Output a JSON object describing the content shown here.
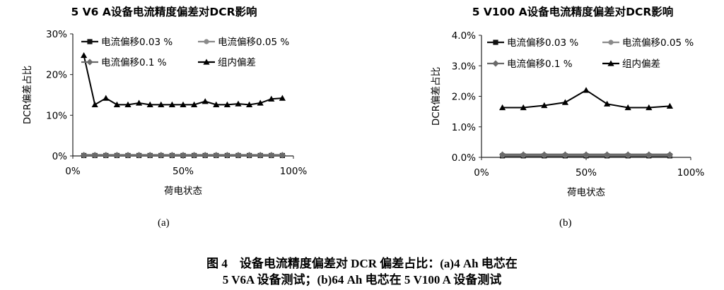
{
  "chart_data": [
    {
      "type": "line",
      "title": "5 V6 A设备电流精度偏差对DCR影响",
      "xlabel": "荷电状态",
      "ylabel": "DCR偏差占比",
      "xlim": [
        0,
        100
      ],
      "ylim": [
        0,
        30
      ],
      "xticks": [
        0,
        50,
        100
      ],
      "xtick_labels": [
        "0%",
        "50%",
        "100%"
      ],
      "yticks": [
        0,
        10,
        20,
        30
      ],
      "ytick_labels": [
        "0%",
        "10%",
        "20%",
        "30%"
      ],
      "legend": "top-inside",
      "grid": false,
      "series": [
        {
          "name": "电流偏移0.03 %",
          "color": "#111111",
          "marker": "square",
          "x": [
            5,
            10,
            15,
            20,
            25,
            30,
            35,
            40,
            45,
            50,
            55,
            60,
            65,
            70,
            75,
            80,
            85,
            90,
            95
          ],
          "y": [
            0.1,
            0.1,
            0.1,
            0.1,
            0.1,
            0.1,
            0.1,
            0.1,
            0.1,
            0.1,
            0.1,
            0.1,
            0.1,
            0.1,
            0.1,
            0.1,
            0.1,
            0.1,
            0.1
          ]
        },
        {
          "name": "电流偏移0.05 %",
          "color": "#8a8a8a",
          "marker": "circle",
          "x": [
            5,
            10,
            15,
            20,
            25,
            30,
            35,
            40,
            45,
            50,
            55,
            60,
            65,
            70,
            75,
            80,
            85,
            90,
            95
          ],
          "y": [
            0.15,
            0.15,
            0.15,
            0.15,
            0.15,
            0.15,
            0.15,
            0.15,
            0.15,
            0.15,
            0.15,
            0.15,
            0.15,
            0.15,
            0.15,
            0.15,
            0.15,
            0.15,
            0.15
          ]
        },
        {
          "name": "电流偏移0.1 %",
          "color": "#6a6a6a",
          "marker": "diamond",
          "x": [
            5,
            10,
            15,
            20,
            25,
            30,
            35,
            40,
            45,
            50,
            55,
            60,
            65,
            70,
            75,
            80,
            85,
            90,
            95
          ],
          "y": [
            0.2,
            0.2,
            0.2,
            0.2,
            0.2,
            0.2,
            0.2,
            0.2,
            0.2,
            0.2,
            0.2,
            0.2,
            0.2,
            0.2,
            0.2,
            0.2,
            0.2,
            0.2,
            0.2
          ]
        },
        {
          "name": "组内偏差",
          "color": "#000000",
          "marker": "triangle",
          "x": [
            5,
            10,
            15,
            20,
            25,
            30,
            35,
            40,
            45,
            50,
            55,
            60,
            65,
            70,
            75,
            80,
            85,
            90,
            95
          ],
          "y": [
            24.7,
            12.6,
            14.2,
            12.6,
            12.6,
            13.0,
            12.6,
            12.6,
            12.6,
            12.6,
            12.6,
            13.4,
            12.6,
            12.6,
            12.8,
            12.6,
            13.0,
            14.0,
            14.2
          ]
        }
      ]
    },
    {
      "type": "line",
      "title": "5 V100 A设备电流精度偏差对DCR影响",
      "xlabel": "荷电状态",
      "ylabel": "DCR偏差占比",
      "xlim": [
        0,
        100
      ],
      "ylim": [
        0,
        4
      ],
      "xticks": [
        0,
        50,
        100
      ],
      "xtick_labels": [
        "0%",
        "50%",
        "100%"
      ],
      "yticks": [
        0,
        1,
        2,
        3,
        4
      ],
      "ytick_labels": [
        "0.0%",
        "1.0%",
        "2.0%",
        "3.0%",
        "4.0%"
      ],
      "legend": "top-inside",
      "grid": false,
      "series": [
        {
          "name": "电流偏移0.03 %",
          "color": "#111111",
          "marker": "square",
          "x": [
            10,
            20,
            30,
            40,
            50,
            60,
            70,
            80,
            90
          ],
          "y": [
            0.05,
            0.05,
            0.05,
            0.05,
            0.05,
            0.05,
            0.05,
            0.05,
            0.05
          ]
        },
        {
          "name": "电流偏移0.05 %",
          "color": "#8a8a8a",
          "marker": "circle",
          "x": [
            10,
            20,
            30,
            40,
            50,
            60,
            70,
            80,
            90
          ],
          "y": [
            0.07,
            0.07,
            0.07,
            0.07,
            0.07,
            0.07,
            0.07,
            0.07,
            0.07
          ]
        },
        {
          "name": "电流偏移0.1 %",
          "color": "#6a6a6a",
          "marker": "diamond",
          "x": [
            10,
            20,
            30,
            40,
            50,
            60,
            70,
            80,
            90
          ],
          "y": [
            0.09,
            0.09,
            0.09,
            0.09,
            0.09,
            0.09,
            0.09,
            0.09,
            0.09
          ]
        },
        {
          "name": "组内偏差",
          "color": "#000000",
          "marker": "triangle",
          "x": [
            10,
            20,
            30,
            40,
            50,
            60,
            70,
            80,
            90
          ],
          "y": [
            1.63,
            1.63,
            1.7,
            1.8,
            2.2,
            1.75,
            1.63,
            1.63,
            1.68
          ]
        }
      ]
    }
  ],
  "subfigures": [
    "(a)",
    "(b)"
  ],
  "caption": {
    "line1": "图 4　设备电流精度偏差对 DCR 偏差占比：(a)4 Ah 电芯在",
    "line2": "5 V6A 设备测试；(b)64 Ah 电芯在 5 V100 A 设备测试"
  }
}
